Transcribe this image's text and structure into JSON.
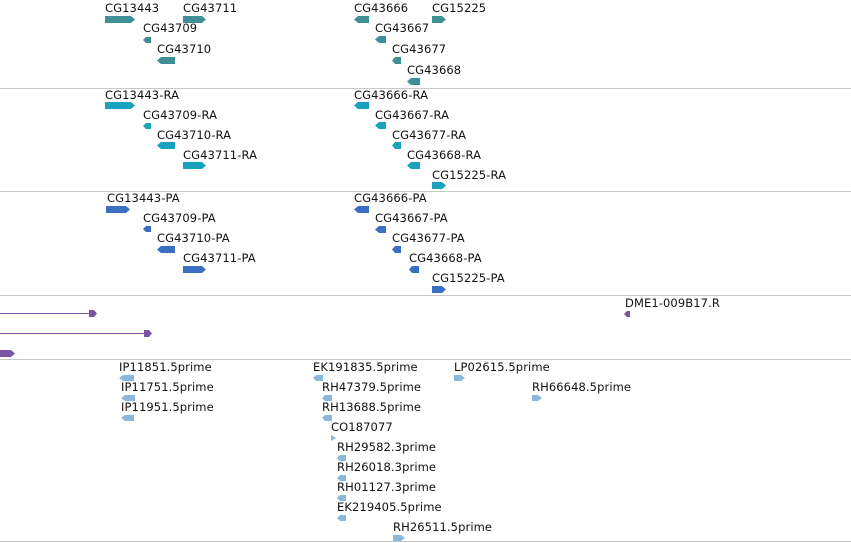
{
  "tracks": {
    "gene": {
      "items": [
        {
          "label": "CG13443",
          "dir": "right"
        },
        {
          "label": "CG43711",
          "dir": "right"
        },
        {
          "label": "CG43709",
          "dir": "left"
        },
        {
          "label": "CG43710",
          "dir": "left"
        },
        {
          "label": "CG43666",
          "dir": "left"
        },
        {
          "label": "CG15225",
          "dir": "right"
        },
        {
          "label": "CG43667",
          "dir": "left"
        },
        {
          "label": "CG43677",
          "dir": "left"
        },
        {
          "label": "CG43668",
          "dir": "left"
        }
      ]
    },
    "mrna": {
      "items": [
        {
          "label": "CG13443-RA",
          "dir": "right"
        },
        {
          "label": "CG43709-RA",
          "dir": "left"
        },
        {
          "label": "CG43710-RA",
          "dir": "left"
        },
        {
          "label": "CG43711-RA",
          "dir": "right"
        },
        {
          "label": "CG43666-RA",
          "dir": "left"
        },
        {
          "label": "CG43667-RA",
          "dir": "left"
        },
        {
          "label": "CG43677-RA",
          "dir": "left"
        },
        {
          "label": "CG43668-RA",
          "dir": "left"
        },
        {
          "label": "CG15225-RA",
          "dir": "right"
        }
      ]
    },
    "cds": {
      "items": [
        {
          "label": "CG13443-PA",
          "dir": "right"
        },
        {
          "label": "CG43709-PA",
          "dir": "left"
        },
        {
          "label": "CG43710-PA",
          "dir": "left"
        },
        {
          "label": "CG43711-PA",
          "dir": "right"
        },
        {
          "label": "CG43666-PA",
          "dir": "left"
        },
        {
          "label": "CG43667-PA",
          "dir": "left"
        },
        {
          "label": "CG43677-PA",
          "dir": "left"
        },
        {
          "label": "CG43668-PA",
          "dir": "left"
        },
        {
          "label": "CG15225-PA",
          "dir": "right"
        }
      ]
    },
    "clones": {
      "items": [
        {
          "label": "DME1-009B17.R",
          "dir": "left"
        }
      ]
    },
    "est": {
      "items": [
        {
          "label": "IP11851.5prime",
          "dir": "left"
        },
        {
          "label": "IP11751.5prime",
          "dir": "left"
        },
        {
          "label": "IP11951.5prime",
          "dir": "left"
        },
        {
          "label": "EK191835.5prime",
          "dir": "left"
        },
        {
          "label": "RH47379.5prime",
          "dir": "left"
        },
        {
          "label": "RH13688.5prime",
          "dir": "left"
        },
        {
          "label": "CO187077",
          "dir": "right"
        },
        {
          "label": "RH29582.3prime",
          "dir": "left"
        },
        {
          "label": "RH26018.3prime",
          "dir": "left"
        },
        {
          "label": "RH01127.3prime",
          "dir": "left"
        },
        {
          "label": "EK219405.5prime",
          "dir": "left"
        },
        {
          "label": "RH26511.5prime",
          "dir": "right"
        },
        {
          "label": "LP02615.5prime",
          "dir": "right"
        },
        {
          "label": "RH66648.5prime",
          "dir": "right"
        }
      ]
    }
  },
  "colors": {
    "gene": "#3f8f97",
    "mrna": "#1aa1bd",
    "cds": "#3b6fc4",
    "clone": "#7b55a3",
    "est": "#8ab8d8",
    "divider": "#c8c8c8"
  }
}
